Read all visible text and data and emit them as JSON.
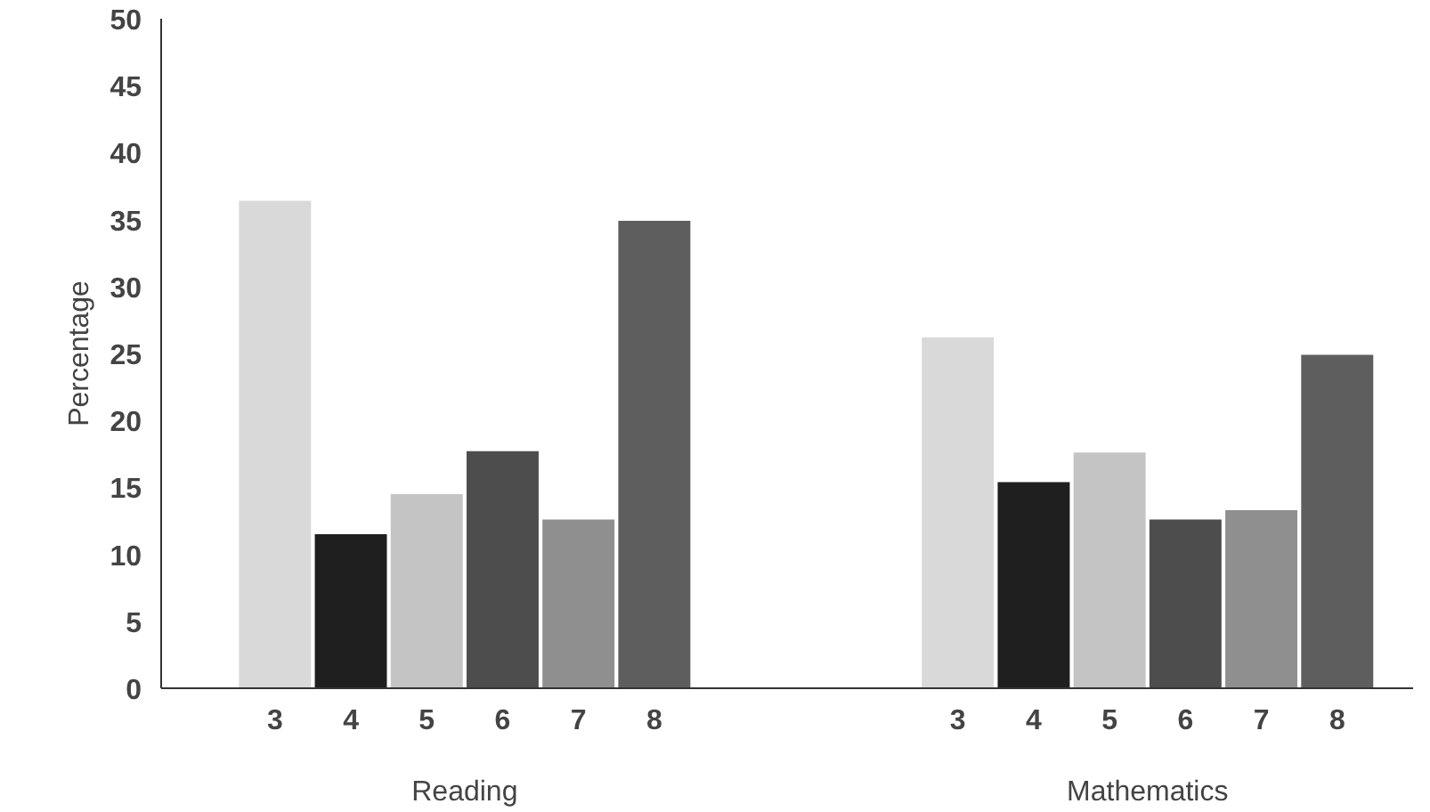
{
  "chart_data": {
    "type": "bar",
    "ylabel": "Percentage",
    "categories": [
      "Reading",
      "Mathematics"
    ],
    "series": [
      {
        "name": "3",
        "color": "#d9d9d9",
        "values": [
          36.4,
          26.2
        ]
      },
      {
        "name": "4",
        "color": "#1f1f1f",
        "values": [
          11.5,
          15.4
        ]
      },
      {
        "name": "5",
        "color": "#c4c4c4",
        "values": [
          14.5,
          17.6
        ]
      },
      {
        "name": "6",
        "color": "#4d4d4d",
        "values": [
          17.7,
          12.6
        ]
      },
      {
        "name": "7",
        "color": "#8f8f8f",
        "values": [
          12.6,
          13.3
        ]
      },
      {
        "name": "8",
        "color": "#5e5e5e",
        "values": [
          34.9,
          24.9
        ]
      }
    ],
    "ylim": [
      0,
      50
    ],
    "yticks": [
      0,
      5,
      10,
      15,
      20,
      25,
      30,
      35,
      40,
      45,
      50
    ],
    "grid": false,
    "legend": false
  }
}
